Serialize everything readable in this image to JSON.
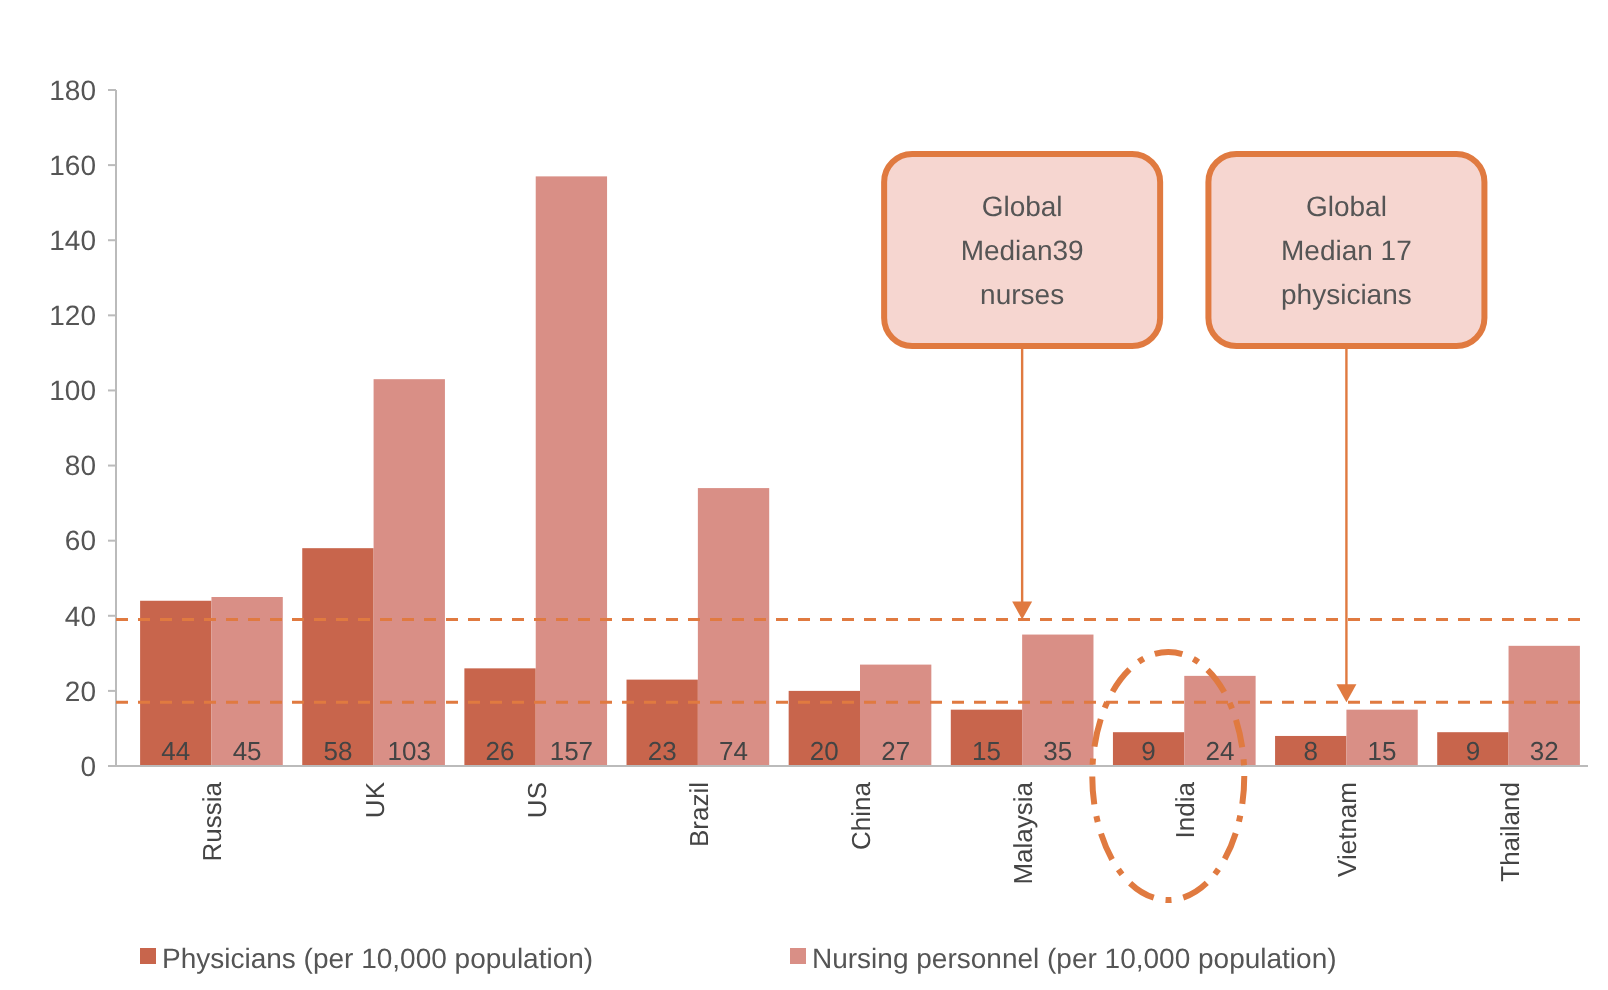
{
  "chart_data": {
    "type": "bar",
    "categories": [
      "Russia",
      "UK",
      "US",
      "Brazil",
      "China",
      "Malaysia",
      "India",
      "Vietnam",
      "Thailand"
    ],
    "series": [
      {
        "name": "Physicians (per 10,000 population)",
        "color": "#c8654c",
        "values": [
          44,
          58,
          26,
          23,
          20,
          15,
          9,
          8,
          9
        ]
      },
      {
        "name": "Nursing personnel (per 10,000 population)",
        "color": "#d98f86",
        "values": [
          45,
          103,
          157,
          74,
          27,
          35,
          24,
          15,
          32
        ]
      }
    ],
    "ylim": [
      0,
      180
    ],
    "yticks": [
      0,
      20,
      40,
      60,
      80,
      100,
      120,
      140,
      160,
      180
    ],
    "data_labels": true,
    "grid": false,
    "legend": "bottom",
    "ref_lines": [
      {
        "axis": "y",
        "value": 39,
        "label": "Global Median39 nurses",
        "color": "#e07a40",
        "line_style": "dashed"
      },
      {
        "axis": "y",
        "value": 17,
        "label": "Global Median 17 physicians",
        "color": "#e07a40",
        "line_style": "dashed"
      }
    ]
  }
}
